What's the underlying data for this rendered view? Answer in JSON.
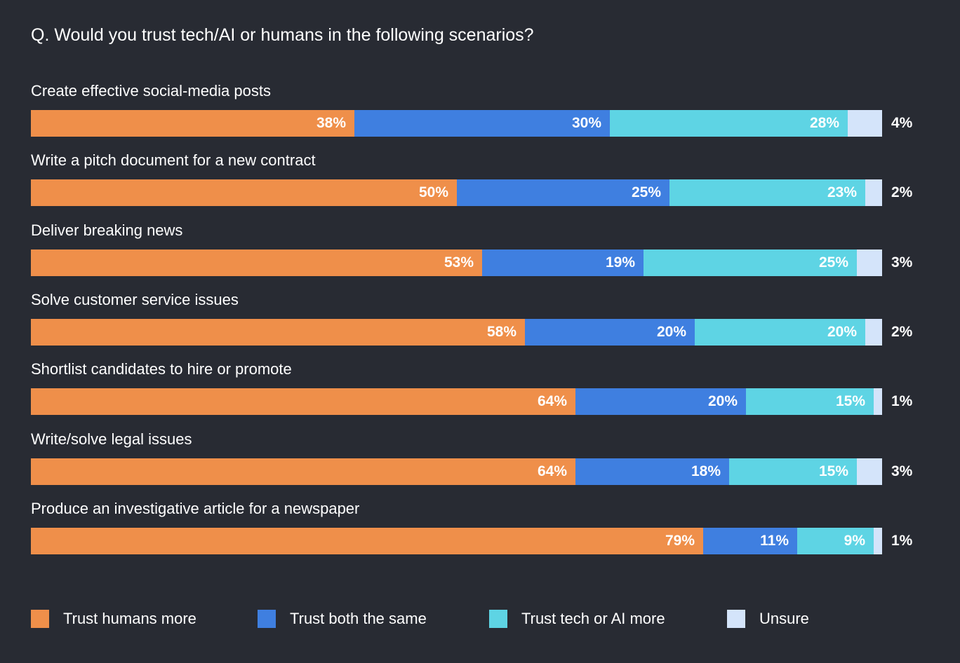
{
  "title": "Q. Would you trust tech/AI or humans in the following scenarios?",
  "colors": {
    "background": "#282b33",
    "humans": "#ef8f4a",
    "both": "#3f7fe0",
    "tech": "#5ed4e4",
    "unsure": "#d4e4fa"
  },
  "chart_data": {
    "type": "bar",
    "orientation": "horizontal",
    "stacked": true,
    "title": "Q. Would you trust tech/AI or humans in the following scenarios?",
    "categories": [
      "Create effective social-media posts",
      "Write a pitch document for a new contract",
      "Deliver breaking news",
      "Solve customer service issues",
      "Shortlist candidates to hire or promote",
      "Write/solve legal issues",
      "Produce an investigative article for a newspaper"
    ],
    "series": [
      {
        "name": "Trust humans more",
        "key": "humans",
        "values": [
          38,
          50,
          53,
          58,
          64,
          64,
          79
        ]
      },
      {
        "name": "Trust both the same",
        "key": "both",
        "values": [
          30,
          25,
          19,
          20,
          20,
          18,
          11
        ]
      },
      {
        "name": "Trust tech or AI more",
        "key": "tech",
        "values": [
          28,
          23,
          25,
          20,
          15,
          15,
          9
        ]
      },
      {
        "name": "Unsure",
        "key": "unsure",
        "values": [
          4,
          2,
          3,
          2,
          1,
          3,
          1
        ]
      }
    ],
    "value_suffix": "%",
    "legend_position": "bottom"
  }
}
